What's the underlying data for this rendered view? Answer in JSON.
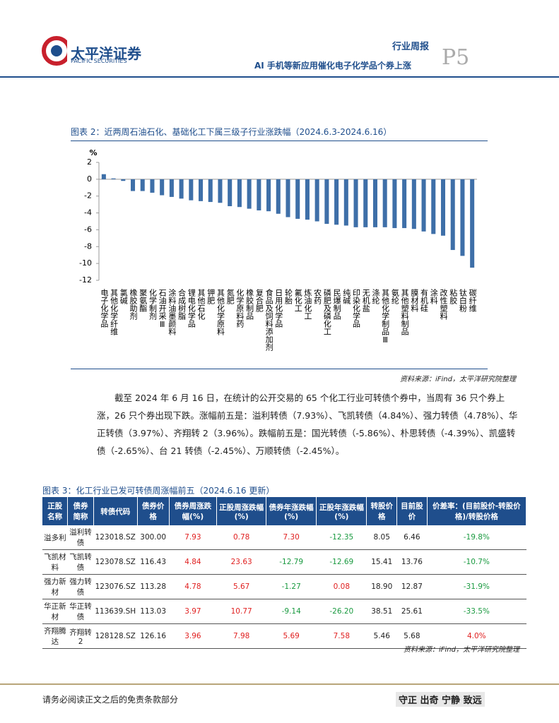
{
  "header": {
    "company": "太平洋证券",
    "company_en": "PACIFIC SECURITIES",
    "report_type": "行业周报",
    "report_title": "AI 手机等新应用催化电子化学品个券上涨",
    "page": "P5"
  },
  "figure_caption": "图表 2：近两周石油石化、基础化工下属三级子行业涨跌幅（2024.6.3-2024.6.16）",
  "chart_data": {
    "type": "bar",
    "ylabel": "%",
    "color": "#3e6fa8",
    "categories": [
      "电子化学品",
      "其他化学纤维",
      "氯碱",
      "橡胶助剂",
      "聚氨酯",
      "化学制剂",
      "石油开采Ⅲ",
      "涂料油墨颜料",
      "合成树脂",
      "锂电化学品",
      "其他石化",
      "钾肥",
      "其他化学原料",
      "氮肥",
      "化学原料药",
      "橡胶制品",
      "复合肥",
      "食品及饲料添加剂",
      "日用化学品",
      "轮胎",
      "氟化工",
      "炼油化工",
      "农药",
      "磷肥及磷化工",
      "民爆制品",
      "纯碱",
      "印染化学品",
      "无机盐",
      "涤纶",
      "其他化学制品Ⅲ",
      "氨纶",
      "其他塑料制品",
      "膜材料",
      "有机硅",
      "涂料",
      "改性塑料",
      "粘胶",
      "钛白粉",
      "碳纤维"
    ],
    "values": [
      0.6,
      0.1,
      -0.2,
      -1.4,
      -1.4,
      -1.6,
      -1.9,
      -2.1,
      -2.3,
      -2.5,
      -2.6,
      -2.7,
      -2.8,
      -3.2,
      -3.3,
      -3.5,
      -3.7,
      -3.8,
      -4.1,
      -4.5,
      -4.7,
      -4.8,
      -5.0,
      -5.3,
      -5.4,
      -5.5,
      -5.7,
      -5.7,
      -5.7,
      -5.7,
      -5.8,
      -5.8,
      -5.9,
      -6.2,
      -6.5,
      -6.7,
      -8.4,
      -9.1,
      -10.5
    ],
    "ylim": [
      -12,
      2
    ],
    "yticks": [
      2,
      0,
      -2,
      -4,
      -6,
      -8,
      -10,
      -12
    ],
    "grid": false
  },
  "chart_source": "资料来源：iFind，太平洋研究院整理",
  "paragraph": "截至 2024 年 6 月 16 日，在统计的公开交易的 65 个化工行业可转债个券中，当周有 36 只个券上涨，26 只个券出现下跌。涨幅前五是：溢利转债（7.93%）、飞凯转债（4.84%）、强力转债（4.78%）、华正转债（3.97%）、齐翔转 2（3.96%）。跌幅前五是：国光转债（-5.86%）、朴思转债（-4.39%）、凯盛转债（-2.65%）、台 21 转债（-2.45%）、万顺转债（-2.45%）。",
  "table_caption": "图表 3：化工行业已发可转债周涨幅前五（2024.6.16 更新）",
  "table": {
    "header": [
      "正股名称",
      "债券简称",
      "转债代码",
      "债券价格",
      "债券周涨跌幅(%)",
      "正股周涨跌幅(%)",
      "债券年涨跌幅(%)",
      "正股年涨跌幅(%)",
      "转股价格",
      "目前股价",
      "价差率：(目前股价-转股价格)/转股价格"
    ],
    "rows": [
      [
        "溢多利",
        "溢利转债",
        "123018.SZ",
        "300.00",
        "7.93",
        "0.78",
        "7.30",
        "-12.35",
        "8.05",
        "6.46",
        "-19.8%"
      ],
      [
        "飞凯材料",
        "飞凯转债",
        "123078.SZ",
        "116.43",
        "4.84",
        "23.63",
        "-12.79",
        "-12.69",
        "15.41",
        "13.76",
        "-10.7%"
      ],
      [
        "强力新材",
        "强力转债",
        "123076.SZ",
        "113.28",
        "4.78",
        "5.67",
        "-1.27",
        "0.08",
        "18.90",
        "12.87",
        "-31.9%"
      ],
      [
        "华正新材",
        "华正转债",
        "113639.SH",
        "113.03",
        "3.97",
        "10.77",
        "-9.14",
        "-26.20",
        "38.51",
        "25.61",
        "-33.5%"
      ],
      [
        "齐翔腾达",
        "齐翔转 2",
        "128128.SZ",
        "126.16",
        "3.96",
        "7.98",
        "5.69",
        "7.58",
        "5.46",
        "5.68",
        "4.0%"
      ]
    ]
  },
  "table_source": "资料来源：iFind，太平洋研究院整理",
  "footer": {
    "disclaimer": "请务必阅读正文之后的免责条款部分",
    "motto": "守正 出奇 宁静 致远"
  }
}
